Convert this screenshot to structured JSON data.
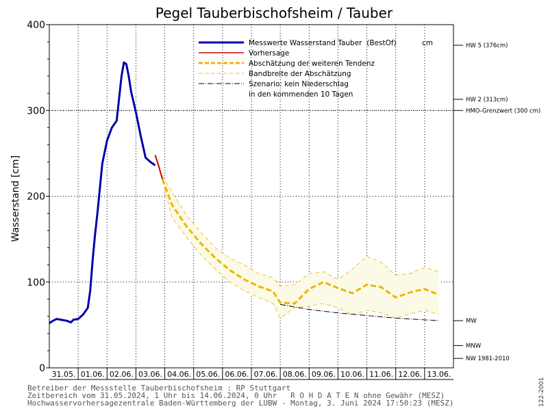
{
  "chart_data": {
    "type": "line",
    "title": "Pegel Tauberbischofsheim / Tauber",
    "ylabel": "Wasserstand [cm]",
    "ylim": [
      0,
      400
    ],
    "yticks": [
      0,
      100,
      200,
      300,
      400
    ],
    "x_range": [
      "2024-05-31T00:00",
      "2024-06-14T00:00"
    ],
    "x_tick_labels": [
      "31.05.",
      "01.06.",
      "02.06.",
      "03.06.",
      "04.06.",
      "05.06.",
      "06.06.",
      "07.06.",
      "08.06.",
      "09.06.",
      "10.06.",
      "11.06.",
      "12.06.",
      "13.06."
    ],
    "grid": true,
    "legend_position": "top",
    "legend": [
      {
        "label": "Messwerte Wasserstand Tauber",
        "extra": "(BestOf)",
        "unit": "cm",
        "color": "#0000aa",
        "style": "solid-thick"
      },
      {
        "label": "Vorhersage",
        "color": "#cc0000",
        "style": "solid"
      },
      {
        "label": "Abschätzung der weiteren Tendenz",
        "color": "#f0b400",
        "style": "dashed-thick"
      },
      {
        "label": "Bandbreite der Abschätzung",
        "color": "#f0c040",
        "style": "dashed-thin"
      },
      {
        "label": "Szenario: kein Niederschlag",
        "label2": "in den kommenden 10 Tagen",
        "color": "#000000",
        "style": "dashdot"
      }
    ],
    "reference_lines": [
      {
        "label": "HW 5 (376cm)",
        "value": 376
      },
      {
        "label": "HW 2 (313cm)",
        "value": 313
      },
      {
        "label": "HMO-Grenzwert (300 cm)",
        "value": 300
      },
      {
        "label": "MW",
        "value": 55
      },
      {
        "label": "MNW",
        "value": 26
      },
      {
        "label": "NW 1981-2010",
        "value": 11
      }
    ],
    "series": [
      {
        "name": "Messwerte Wasserstand Tauber",
        "x": [
          "2024-05-31T00:00",
          "2024-05-31T02:00",
          "2024-05-31T06:00",
          "2024-05-31T10:00",
          "2024-05-31T14:00",
          "2024-05-31T18:00",
          "2024-05-31T20:00",
          "2024-06-01T00:00",
          "2024-06-01T04:00",
          "2024-06-01T08:00",
          "2024-06-01T10:00",
          "2024-06-01T12:00",
          "2024-06-01T14:00",
          "2024-06-01T16:00",
          "2024-06-01T20:00",
          "2024-06-02T00:00",
          "2024-06-02T04:00",
          "2024-06-02T08:00",
          "2024-06-02T12:00",
          "2024-06-02T14:00",
          "2024-06-02T16:00",
          "2024-06-02T18:00",
          "2024-06-02T20:00",
          "2024-06-02T22:00",
          "2024-06-03T00:00",
          "2024-06-03T04:00",
          "2024-06-03T08:00",
          "2024-06-03T12:00",
          "2024-06-03T16:00"
        ],
        "values": [
          52,
          54,
          57,
          56,
          55,
          53,
          56,
          57,
          62,
          70,
          90,
          125,
          155,
          180,
          238,
          265,
          280,
          288,
          340,
          356,
          354,
          340,
          322,
          310,
          298,
          270,
          245,
          240,
          236
        ]
      },
      {
        "name": "Vorhersage",
        "x": [
          "2024-06-03T16:00",
          "2024-06-03T19:00",
          "2024-06-03T22:00"
        ],
        "values": [
          248,
          235,
          220
        ]
      },
      {
        "name": "Abschätzung der weiteren Tendenz",
        "x": [
          "2024-06-03T22:00",
          "2024-06-04T06:00",
          "2024-06-04T18:00",
          "2024-06-05T06:00",
          "2024-06-05T18:00",
          "2024-06-06T06:00",
          "2024-06-06T18:00",
          "2024-06-07T06:00",
          "2024-06-07T18:00",
          "2024-06-08T00:00",
          "2024-06-08T12:00",
          "2024-06-09T00:00",
          "2024-06-09T12:00",
          "2024-06-10T00:00",
          "2024-06-10T12:00",
          "2024-06-11T00:00",
          "2024-06-11T12:00",
          "2024-06-12T00:00",
          "2024-06-12T12:00",
          "2024-06-13T00:00",
          "2024-06-13T12:00"
        ],
        "values": [
          220,
          190,
          165,
          145,
          128,
          114,
          103,
          95,
          89,
          76,
          75,
          92,
          100,
          93,
          87,
          97,
          94,
          82,
          88,
          92,
          85
        ]
      },
      {
        "name": "Bandbreite der Abschätzung (oben)",
        "x": [
          "2024-06-03T22:00",
          "2024-06-04T06:00",
          "2024-06-04T18:00",
          "2024-06-05T06:00",
          "2024-06-05T18:00",
          "2024-06-06T06:00",
          "2024-06-06T18:00",
          "2024-06-07T06:00",
          "2024-06-07T18:00",
          "2024-06-08T00:00",
          "2024-06-08T12:00",
          "2024-06-09T00:00",
          "2024-06-09T12:00",
          "2024-06-10T00:00",
          "2024-06-10T12:00",
          "2024-06-11T00:00",
          "2024-06-11T12:00",
          "2024-06-12T00:00",
          "2024-06-12T12:00",
          "2024-06-13T00:00",
          "2024-06-13T12:00"
        ],
        "values": [
          224,
          205,
          178,
          158,
          140,
          128,
          120,
          110,
          105,
          95,
          97,
          110,
          112,
          103,
          115,
          130,
          123,
          108,
          110,
          117,
          112
        ]
      },
      {
        "name": "Bandbreite der Abschätzung (unten)",
        "x": [
          "2024-06-03T22:00",
          "2024-06-04T06:00",
          "2024-06-04T18:00",
          "2024-06-05T06:00",
          "2024-06-05T18:00",
          "2024-06-06T06:00",
          "2024-06-06T18:00",
          "2024-06-07T06:00",
          "2024-06-07T18:00",
          "2024-06-08T00:00",
          "2024-06-08T12:00",
          "2024-06-09T00:00",
          "2024-06-09T12:00",
          "2024-06-10T00:00",
          "2024-06-10T12:00",
          "2024-06-11T00:00",
          "2024-06-11T12:00",
          "2024-06-12T00:00",
          "2024-06-12T12:00",
          "2024-06-13T00:00",
          "2024-06-13T12:00"
        ],
        "values": [
          218,
          175,
          152,
          132,
          115,
          100,
          90,
          82,
          75,
          58,
          70,
          72,
          75,
          70,
          62,
          67,
          64,
          58,
          63,
          67,
          62
        ]
      },
      {
        "name": "Szenario: kein Niederschlag",
        "x": [
          "2024-06-08T00:00",
          "2024-06-09T00:00",
          "2024-06-10T00:00",
          "2024-06-11T00:00",
          "2024-06-12T00:00",
          "2024-06-13T00:00",
          "2024-06-13T12:00"
        ],
        "values": [
          74,
          68,
          64,
          61,
          58,
          56,
          55
        ]
      }
    ]
  },
  "footer": {
    "line1": "Betreiber der Messstelle Tauberbischofsheim : RP Stuttgart",
    "line2": "Zeitbereich vom 31.05.2024, 1 Uhr bis 14.06.2024, 0 Uhr   R O H D A T E N ohne Gewähr (MESZ)",
    "line3": "Hochwasservorhersagezentrale Baden-Württemberg der LUBW - Montag, 3. Juni 2024 17:50:23 (MESZ)",
    "code": "122-2001"
  },
  "colors": {
    "measured": "#0000aa",
    "forecast": "#cc0000",
    "tendency": "#f0b400",
    "band_fill": "#fafae6",
    "band_line": "#f0c040",
    "scenario": "#000000"
  }
}
